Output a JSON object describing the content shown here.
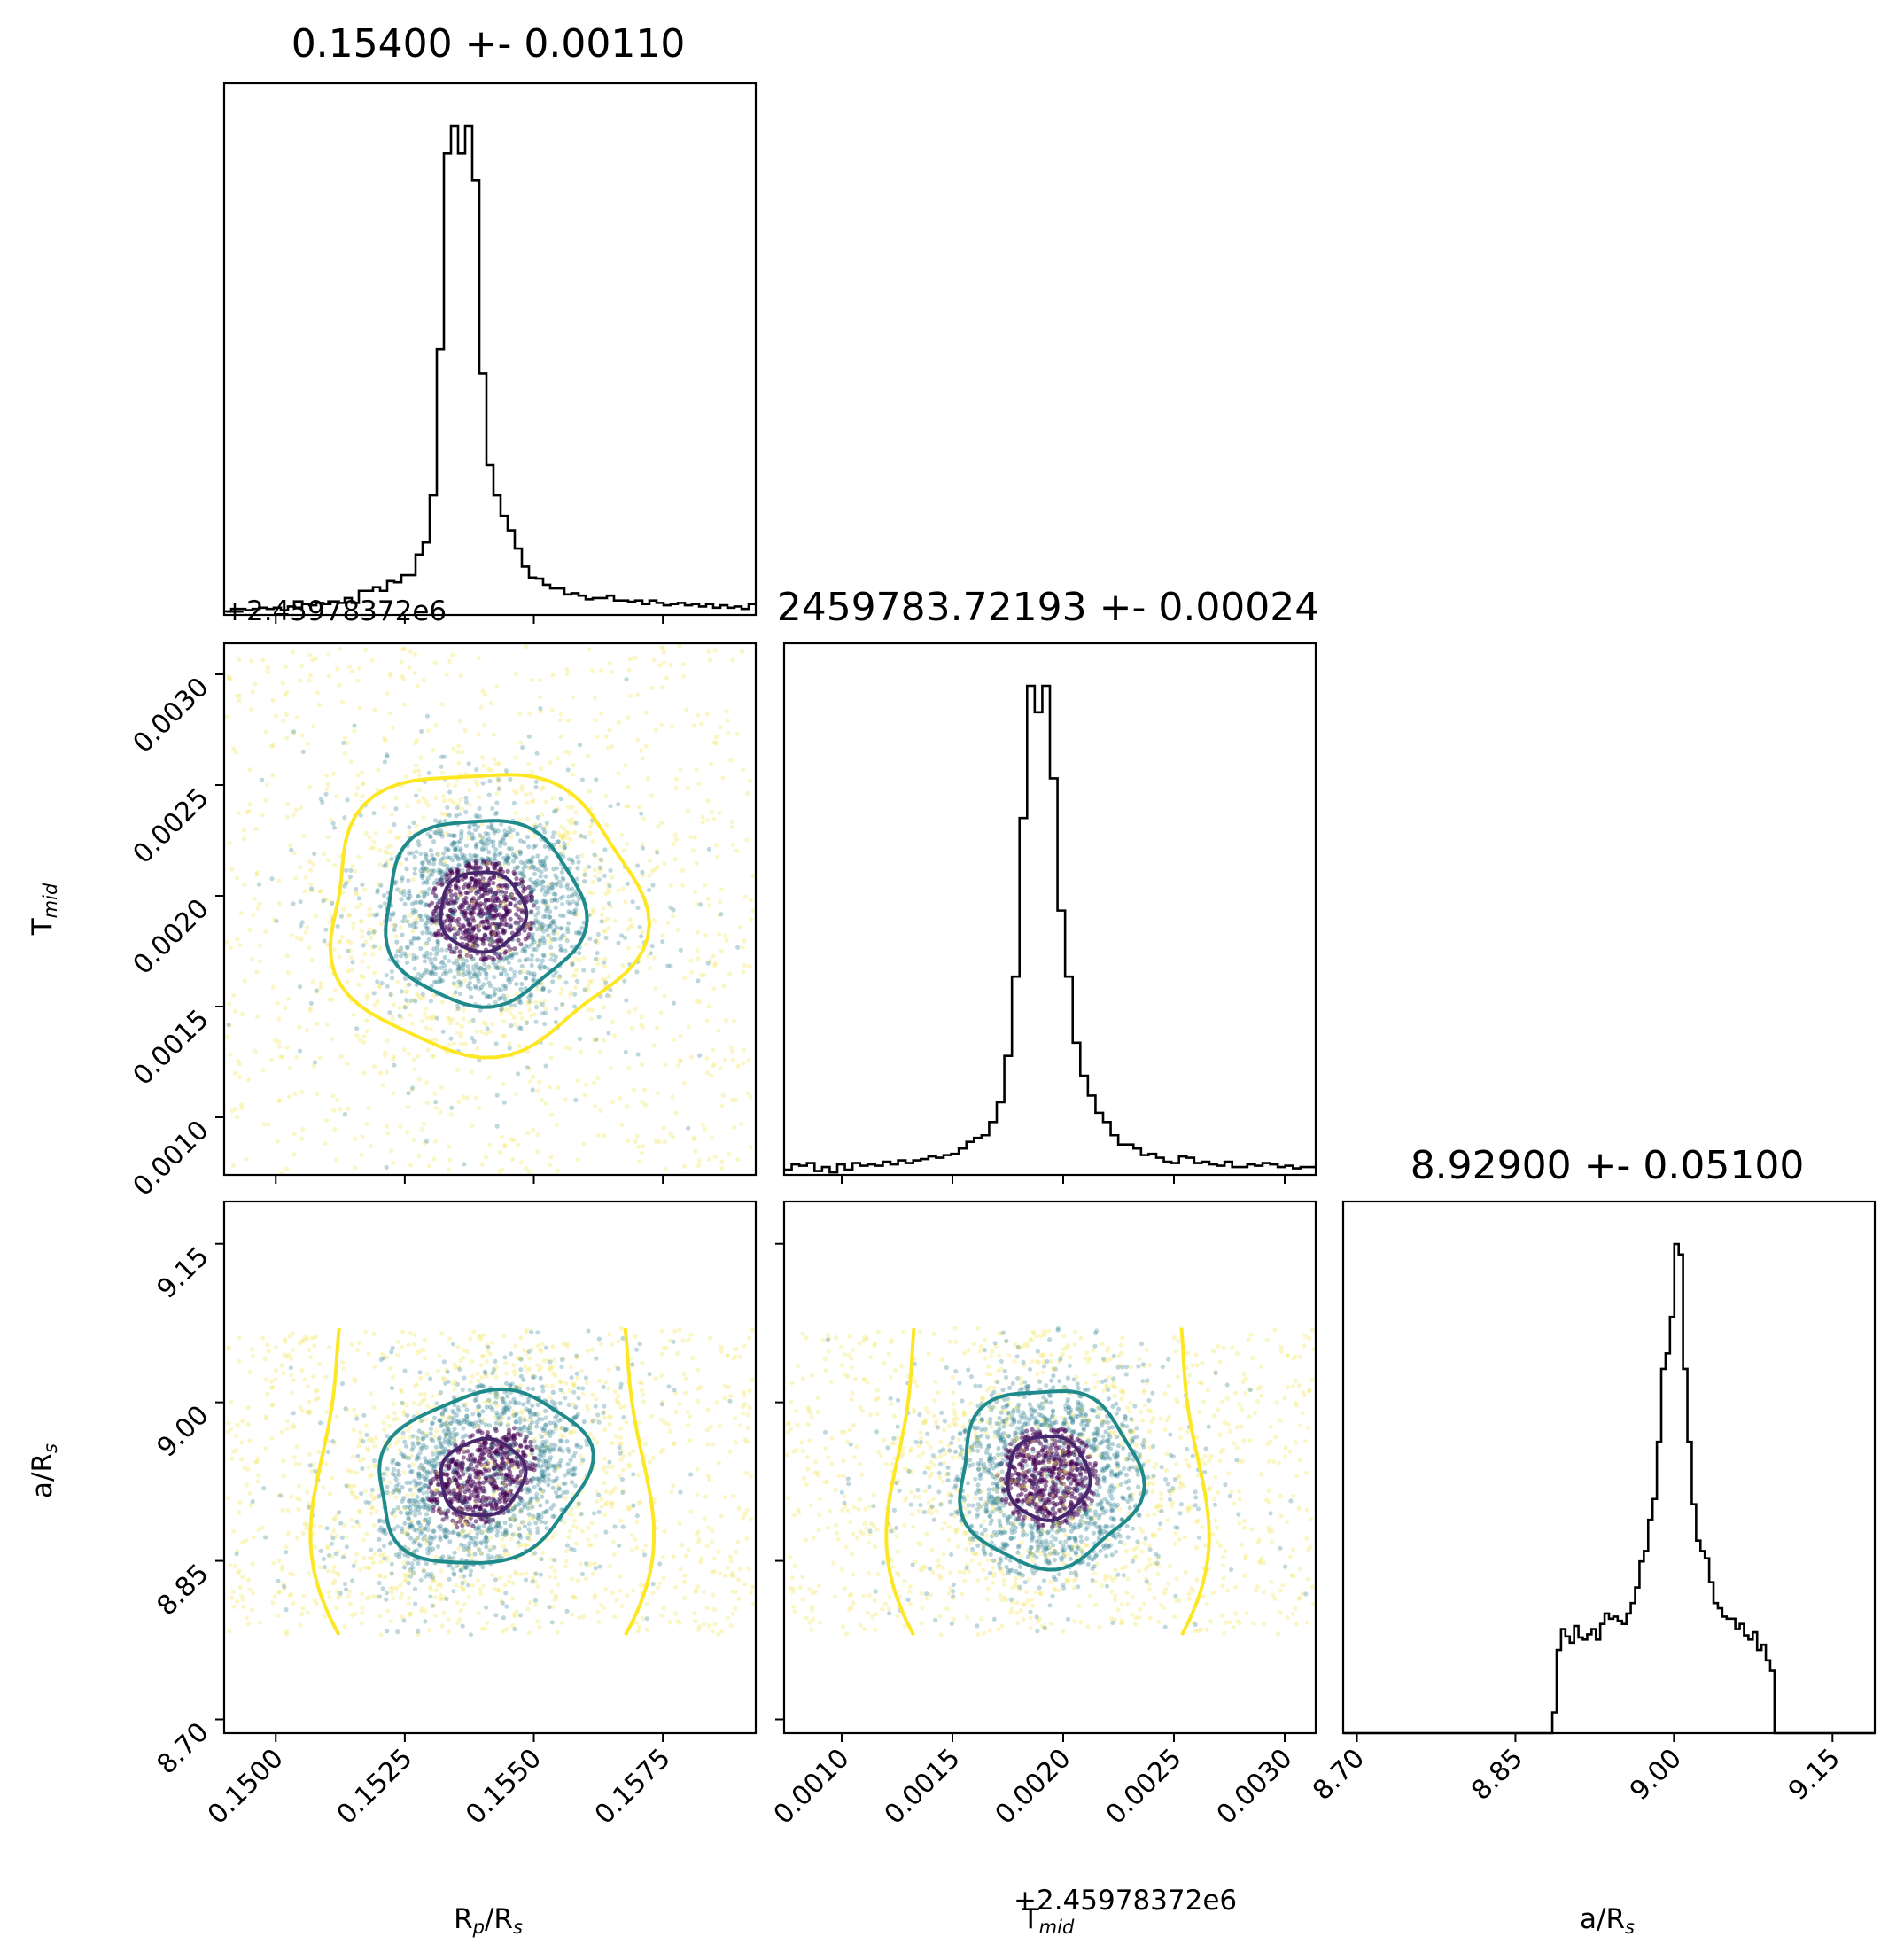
{
  "chart_data": {
    "type": "corner",
    "parameters": [
      {
        "key": "rp",
        "label_main": "R",
        "label_sub1": "p",
        "label_mid": "/R",
        "label_sub2": "s",
        "title": "0.15400 +- 0.00110",
        "median": 0.154,
        "sigma": 0.0011,
        "range": [
          0.149,
          0.1593
        ],
        "ticks": [
          0.15,
          0.1525,
          0.155,
          0.1575
        ],
        "tick_labels": [
          "0.1500",
          "0.1525",
          "0.1550",
          "0.1575"
        ],
        "offset": ""
      },
      {
        "key": "tmid",
        "label_main": "T",
        "label_sub1": "mid",
        "label_mid": "",
        "label_sub2": "",
        "title": "2459783.72193 +- 0.00024",
        "median": 0.00193,
        "sigma": 0.00024,
        "range": [
          0.00074,
          0.00314
        ],
        "ticks": [
          0.001,
          0.0015,
          0.002,
          0.0025,
          0.003
        ],
        "tick_labels": [
          "0.0010",
          "0.0015",
          "0.0020",
          "0.0025",
          "0.0030"
        ],
        "offset": "+2.45978372e6"
      },
      {
        "key": "ars",
        "label_main": "a",
        "label_sub1": "",
        "label_mid": "/R",
        "label_sub2": "s",
        "title": "8.92900 +- 0.05100",
        "median": 8.929,
        "sigma": 0.051,
        "range": [
          8.687,
          9.19
        ],
        "ticks": [
          8.7,
          8.85,
          9.0,
          9.15
        ],
        "tick_labels": [
          "8.70",
          "8.85",
          "9.00",
          "9.15"
        ],
        "offset": ""
      }
    ],
    "histograms": {
      "rp": [
        3,
        5,
        5,
        4,
        5,
        6,
        5,
        6,
        4,
        7,
        6,
        9,
        8,
        10,
        9,
        11,
        10,
        14,
        10,
        20,
        20,
        23,
        20,
        28,
        27,
        33,
        33,
        50,
        60,
        99,
        220,
        382,
        405,
        382,
        405,
        360,
        200,
        124,
        99,
        82,
        70,
        55,
        40,
        31,
        30,
        25,
        22,
        22,
        17,
        18,
        16,
        13,
        14,
        14,
        16,
        12,
        12,
        11,
        12,
        9,
        12,
        10,
        8,
        9,
        10,
        8,
        9,
        7,
        9,
        6,
        8,
        6,
        7,
        5,
        9
      ],
      "tmid": [
        4,
        8,
        7,
        9,
        3,
        6,
        2,
        8,
        4,
        9,
        7,
        8,
        7,
        10,
        8,
        11,
        9,
        11,
        12,
        14,
        13,
        15,
        16,
        20,
        25,
        28,
        30,
        40,
        55,
        90,
        150,
        270,
        370,
        350,
        370,
        300,
        200,
        150,
        100,
        75,
        60,
        47,
        40,
        30,
        23,
        23,
        20,
        15,
        16,
        13,
        10,
        9,
        14,
        13,
        9,
        10,
        8,
        7,
        10,
        6,
        6,
        8,
        7,
        9,
        8,
        6,
        7,
        5,
        6,
        6
      ],
      "ars": [
        0,
        0,
        0,
        0,
        0,
        0,
        0,
        0,
        0,
        0,
        0,
        0,
        0,
        0,
        0,
        0,
        0,
        0,
        0,
        0,
        0,
        0,
        0,
        0,
        0,
        0,
        0,
        0,
        0,
        0,
        0,
        0,
        0,
        0,
        0,
        0,
        0,
        0,
        0,
        0,
        0,
        0,
        0,
        0,
        0,
        0,
        0,
        0,
        20,
        80,
        100,
        93,
        87,
        103,
        92,
        90,
        95,
        100,
        90,
        105,
        115,
        110,
        112,
        108,
        105,
        115,
        125,
        140,
        165,
        175,
        205,
        225,
        280,
        350,
        365,
        400,
        470,
        460,
        350,
        280,
        220,
        185,
        175,
        168,
        145,
        125,
        120,
        112,
        110,
        110,
        100,
        105,
        94,
        90,
        97,
        80,
        85,
        70,
        60,
        0,
        0,
        0,
        0,
        0,
        0,
        0,
        0,
        0,
        0,
        0,
        0,
        0,
        0,
        0,
        0,
        0,
        0,
        0,
        0,
        0,
        0,
        0
      ]
    },
    "hist_ranges": {
      "rp": [
        0.149,
        0.1593
      ],
      "tmid": [
        0.00074,
        0.00314
      ],
      "ars": [
        8.687,
        9.19
      ]
    },
    "ars_clip": [
      8.78,
      9.07
    ],
    "contour_levels": [
      "dark-purple",
      "teal",
      "yellow"
    ],
    "colors": {
      "inner": "#46276d",
      "middle": "#1f8a8b",
      "outer": "#fde725",
      "point_core": "#440154",
      "point_mid": "#2b7f8e",
      "point_outer": "#f4e55c",
      "axis": "#000000"
    }
  }
}
